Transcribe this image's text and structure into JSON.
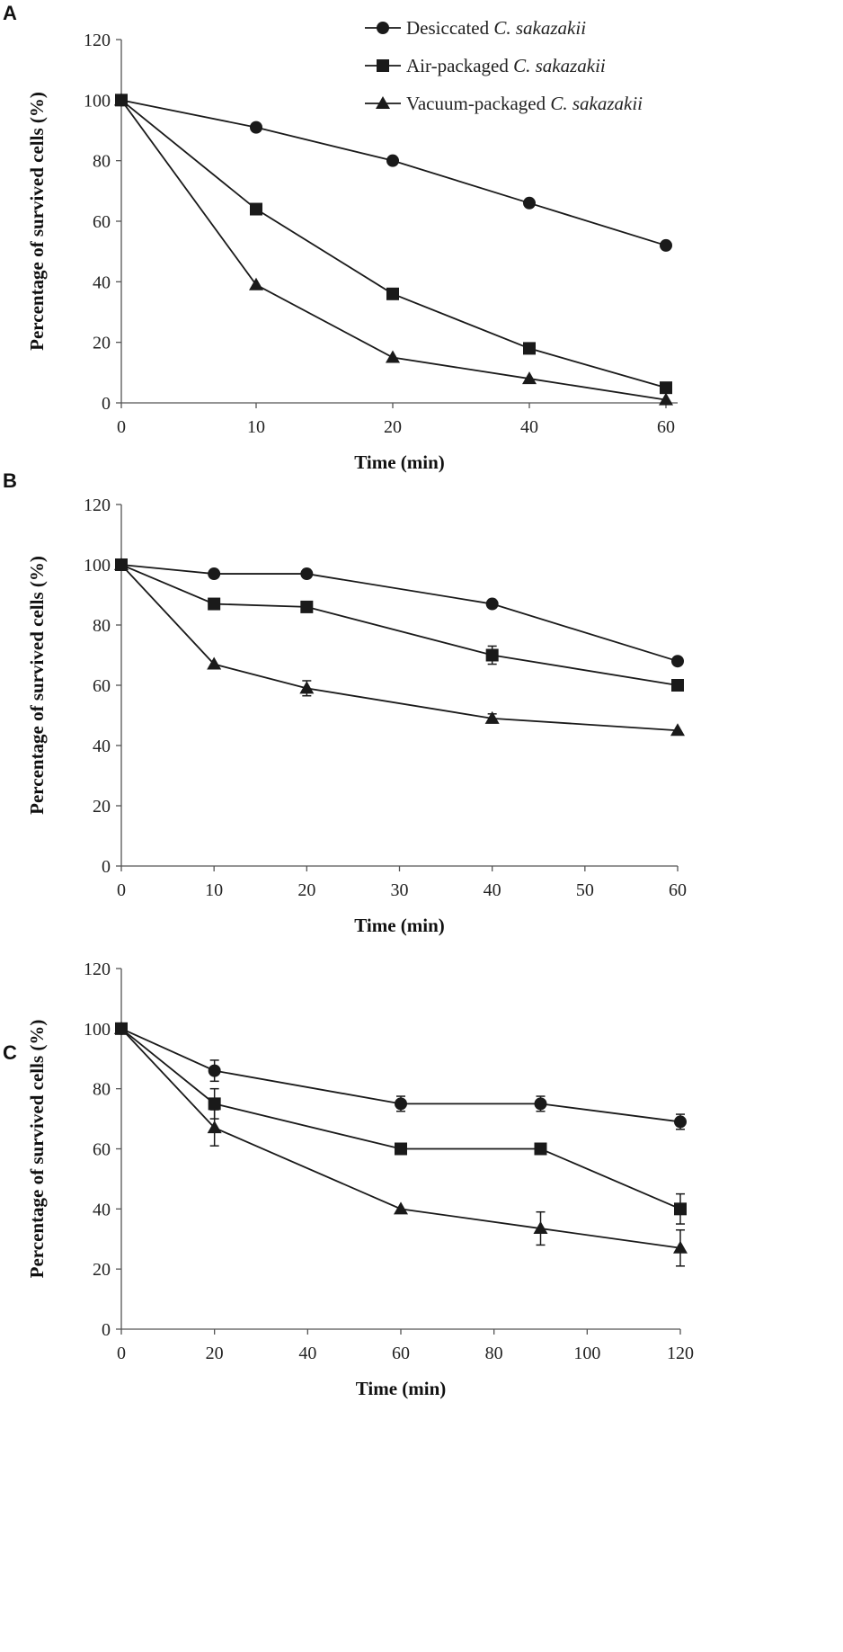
{
  "legend": {
    "entries": [
      {
        "series": "desiccated",
        "marker": "circle",
        "prefix": "Desiccated ",
        "italic": "C. sakazakii"
      },
      {
        "series": "air",
        "marker": "square",
        "prefix": "Air-packaged ",
        "italic": "C. sakazakii"
      },
      {
        "series": "vacuum",
        "marker": "triangle",
        "prefix": "Vacuum-packaged ",
        "italic": "C. sakazakii"
      }
    ]
  },
  "chart_data": [
    {
      "panel": "A",
      "type": "line",
      "xlabel": "Time (min)",
      "ylabel": "Percentage of survived cells (%)",
      "x_axis": "categorical",
      "categories": [
        "0",
        "10",
        "20",
        "40",
        "60"
      ],
      "ylim": [
        0,
        120
      ],
      "yticks": [
        "0",
        "20",
        "40",
        "60",
        "80",
        "100",
        "120"
      ],
      "series": [
        {
          "key": "desiccated",
          "name": "Desiccated C. sakazakii",
          "marker": "circle",
          "values": [
            100,
            91,
            80,
            66,
            52
          ],
          "errors": [
            0,
            0,
            0,
            0,
            0
          ]
        },
        {
          "key": "air",
          "name": "Air-packaged C. sakazakii",
          "marker": "square",
          "values": [
            100,
            64,
            36,
            18,
            5
          ],
          "errors": [
            0,
            0,
            0,
            0,
            0
          ]
        },
        {
          "key": "vacuum",
          "name": "Vacuum-packaged C. sakazakii",
          "marker": "triangle",
          "values": [
            100,
            39,
            15,
            8,
            1
          ],
          "errors": [
            0,
            0,
            0,
            0,
            0
          ]
        }
      ]
    },
    {
      "panel": "B",
      "type": "line",
      "xlabel": "Time (min)",
      "ylabel": "Percentage of survived cells (%)",
      "x_axis": "numeric",
      "x": [
        0,
        10,
        20,
        40,
        60
      ],
      "xlim": [
        0,
        60
      ],
      "xticks": [
        "0",
        "10",
        "20",
        "30",
        "40",
        "50",
        "60"
      ],
      "ylim": [
        0,
        120
      ],
      "yticks": [
        "0",
        "20",
        "40",
        "60",
        "80",
        "100",
        "120"
      ],
      "series": [
        {
          "key": "desiccated",
          "name": "Desiccated C. sakazakii",
          "marker": "circle",
          "values": [
            100,
            97,
            97,
            87,
            68
          ],
          "errors": [
            0,
            0,
            0,
            0,
            0
          ]
        },
        {
          "key": "air",
          "name": "Air-packaged C. sakazakii",
          "marker": "square",
          "values": [
            100,
            87,
            86,
            70,
            60
          ],
          "errors": [
            0,
            0,
            0,
            3,
            1
          ]
        },
        {
          "key": "vacuum",
          "name": "Vacuum-packaged C. sakazakii",
          "marker": "triangle",
          "values": [
            100,
            67,
            59,
            49,
            45
          ],
          "errors": [
            0,
            0,
            2.5,
            1.5,
            0
          ]
        }
      ]
    },
    {
      "panel": "C",
      "type": "line",
      "xlabel": "Time (min)",
      "ylabel": "Percentage of survived cells (%)",
      "x_axis": "numeric",
      "x": [
        0,
        20,
        60,
        90,
        120
      ],
      "xlim": [
        0,
        120
      ],
      "xticks": [
        "0",
        "20",
        "40",
        "60",
        "80",
        "100",
        "120"
      ],
      "ylim": [
        0,
        120
      ],
      "yticks": [
        "0",
        "20",
        "40",
        "60",
        "80",
        "100",
        "120"
      ],
      "series": [
        {
          "key": "desiccated",
          "name": "Desiccated C. sakazakii",
          "marker": "circle",
          "values": [
            100,
            86,
            75,
            75,
            69
          ],
          "errors": [
            0,
            3.5,
            2.5,
            2.5,
            2.5
          ]
        },
        {
          "key": "air",
          "name": "Air-packaged C. sakazakii",
          "marker": "square",
          "values": [
            100,
            75,
            60,
            60,
            40
          ],
          "errors": [
            0,
            5,
            0,
            0,
            5
          ]
        },
        {
          "key": "vacuum",
          "name": "Vacuum-packaged C. sakazakii",
          "marker": "triangle",
          "values": [
            100,
            67,
            40,
            33.5,
            27
          ],
          "errors": [
            0,
            6,
            0,
            5.5,
            6
          ]
        }
      ]
    }
  ]
}
